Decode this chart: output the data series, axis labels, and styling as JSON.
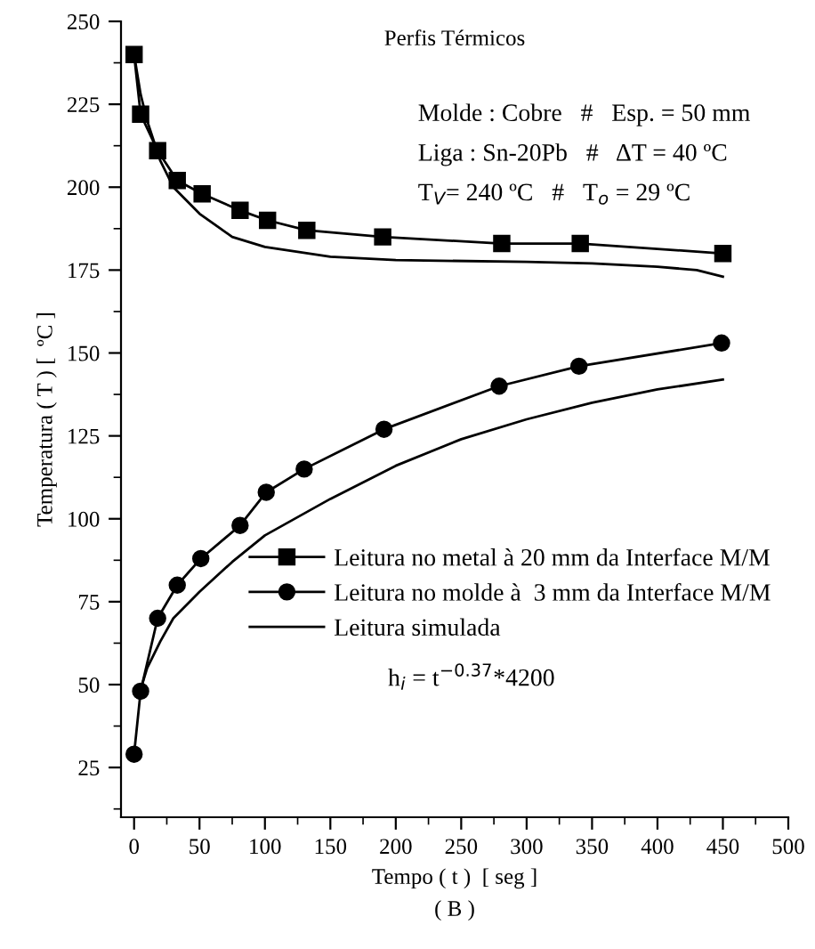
{
  "chart_data": {
    "type": "line",
    "title": "Perfis Térmicos",
    "xlabel": "Tempo ( t )  [ seg ]",
    "ylabel": "Temperatura ( T ) [  ºC ]",
    "annotations": [
      "Molde : Cobre   #   Esp. = 50 mm",
      "Liga : Sn-20Pb   #   ΔT = 40 ºC",
      "T$_{V}$= 240 ºC   #   T$_{o}$ = 29 ºC",
      "h$_{i}$ = t$^{−0.37}$*4200",
      "( B )"
    ],
    "xlim": [
      -10,
      500
    ],
    "xticks": [
      0,
      50,
      100,
      150,
      200,
      250,
      300,
      350,
      400,
      450,
      500
    ],
    "ylim": [
      10,
      250
    ],
    "yticks": [
      25,
      50,
      75,
      100,
      125,
      150,
      175,
      200,
      225,
      250
    ],
    "grid": false,
    "legend": "lower right",
    "series": [
      {
        "name": "Leitura no metal à 20 mm da Interface M/M",
        "color": "#000000",
        "marker": "square",
        "x": [
          0,
          5,
          18,
          33,
          52,
          81,
          102,
          132,
          190,
          281,
          341,
          450
        ],
        "values": [
          240,
          222,
          211,
          202,
          198,
          193,
          190,
          187,
          185,
          183,
          183,
          180
        ]
      },
      {
        "name": "Leitura no molde à  3 mm da Interface M/M",
        "color": "#000000",
        "marker": "circle",
        "x": [
          0,
          5,
          18,
          33,
          51,
          81,
          101,
          130,
          191,
          279,
          340,
          449
        ],
        "values": [
          29,
          48,
          70,
          80,
          88,
          98,
          108,
          115,
          127,
          140,
          146,
          153
        ]
      },
      {
        "name": "Leitura simulada",
        "color": "#000000",
        "marker": "none",
        "x": [
          0,
          5,
          10,
          20,
          30,
          50,
          75,
          100,
          150,
          200,
          300,
          350,
          400,
          430,
          450
        ],
        "values": [
          240,
          228,
          220,
          208,
          200,
          192,
          185,
          182,
          179,
          178,
          177.5,
          177,
          176,
          175,
          173
        ]
      },
      {
        "color": "#000000",
        "marker": "none",
        "x": [
          3,
          10,
          20,
          30,
          50,
          75,
          100,
          150,
          200,
          250,
          300,
          350,
          400,
          450
        ],
        "values": [
          46,
          55,
          63,
          70,
          78,
          87,
          95,
          106,
          116,
          124,
          130,
          135,
          139,
          142
        ]
      }
    ]
  }
}
